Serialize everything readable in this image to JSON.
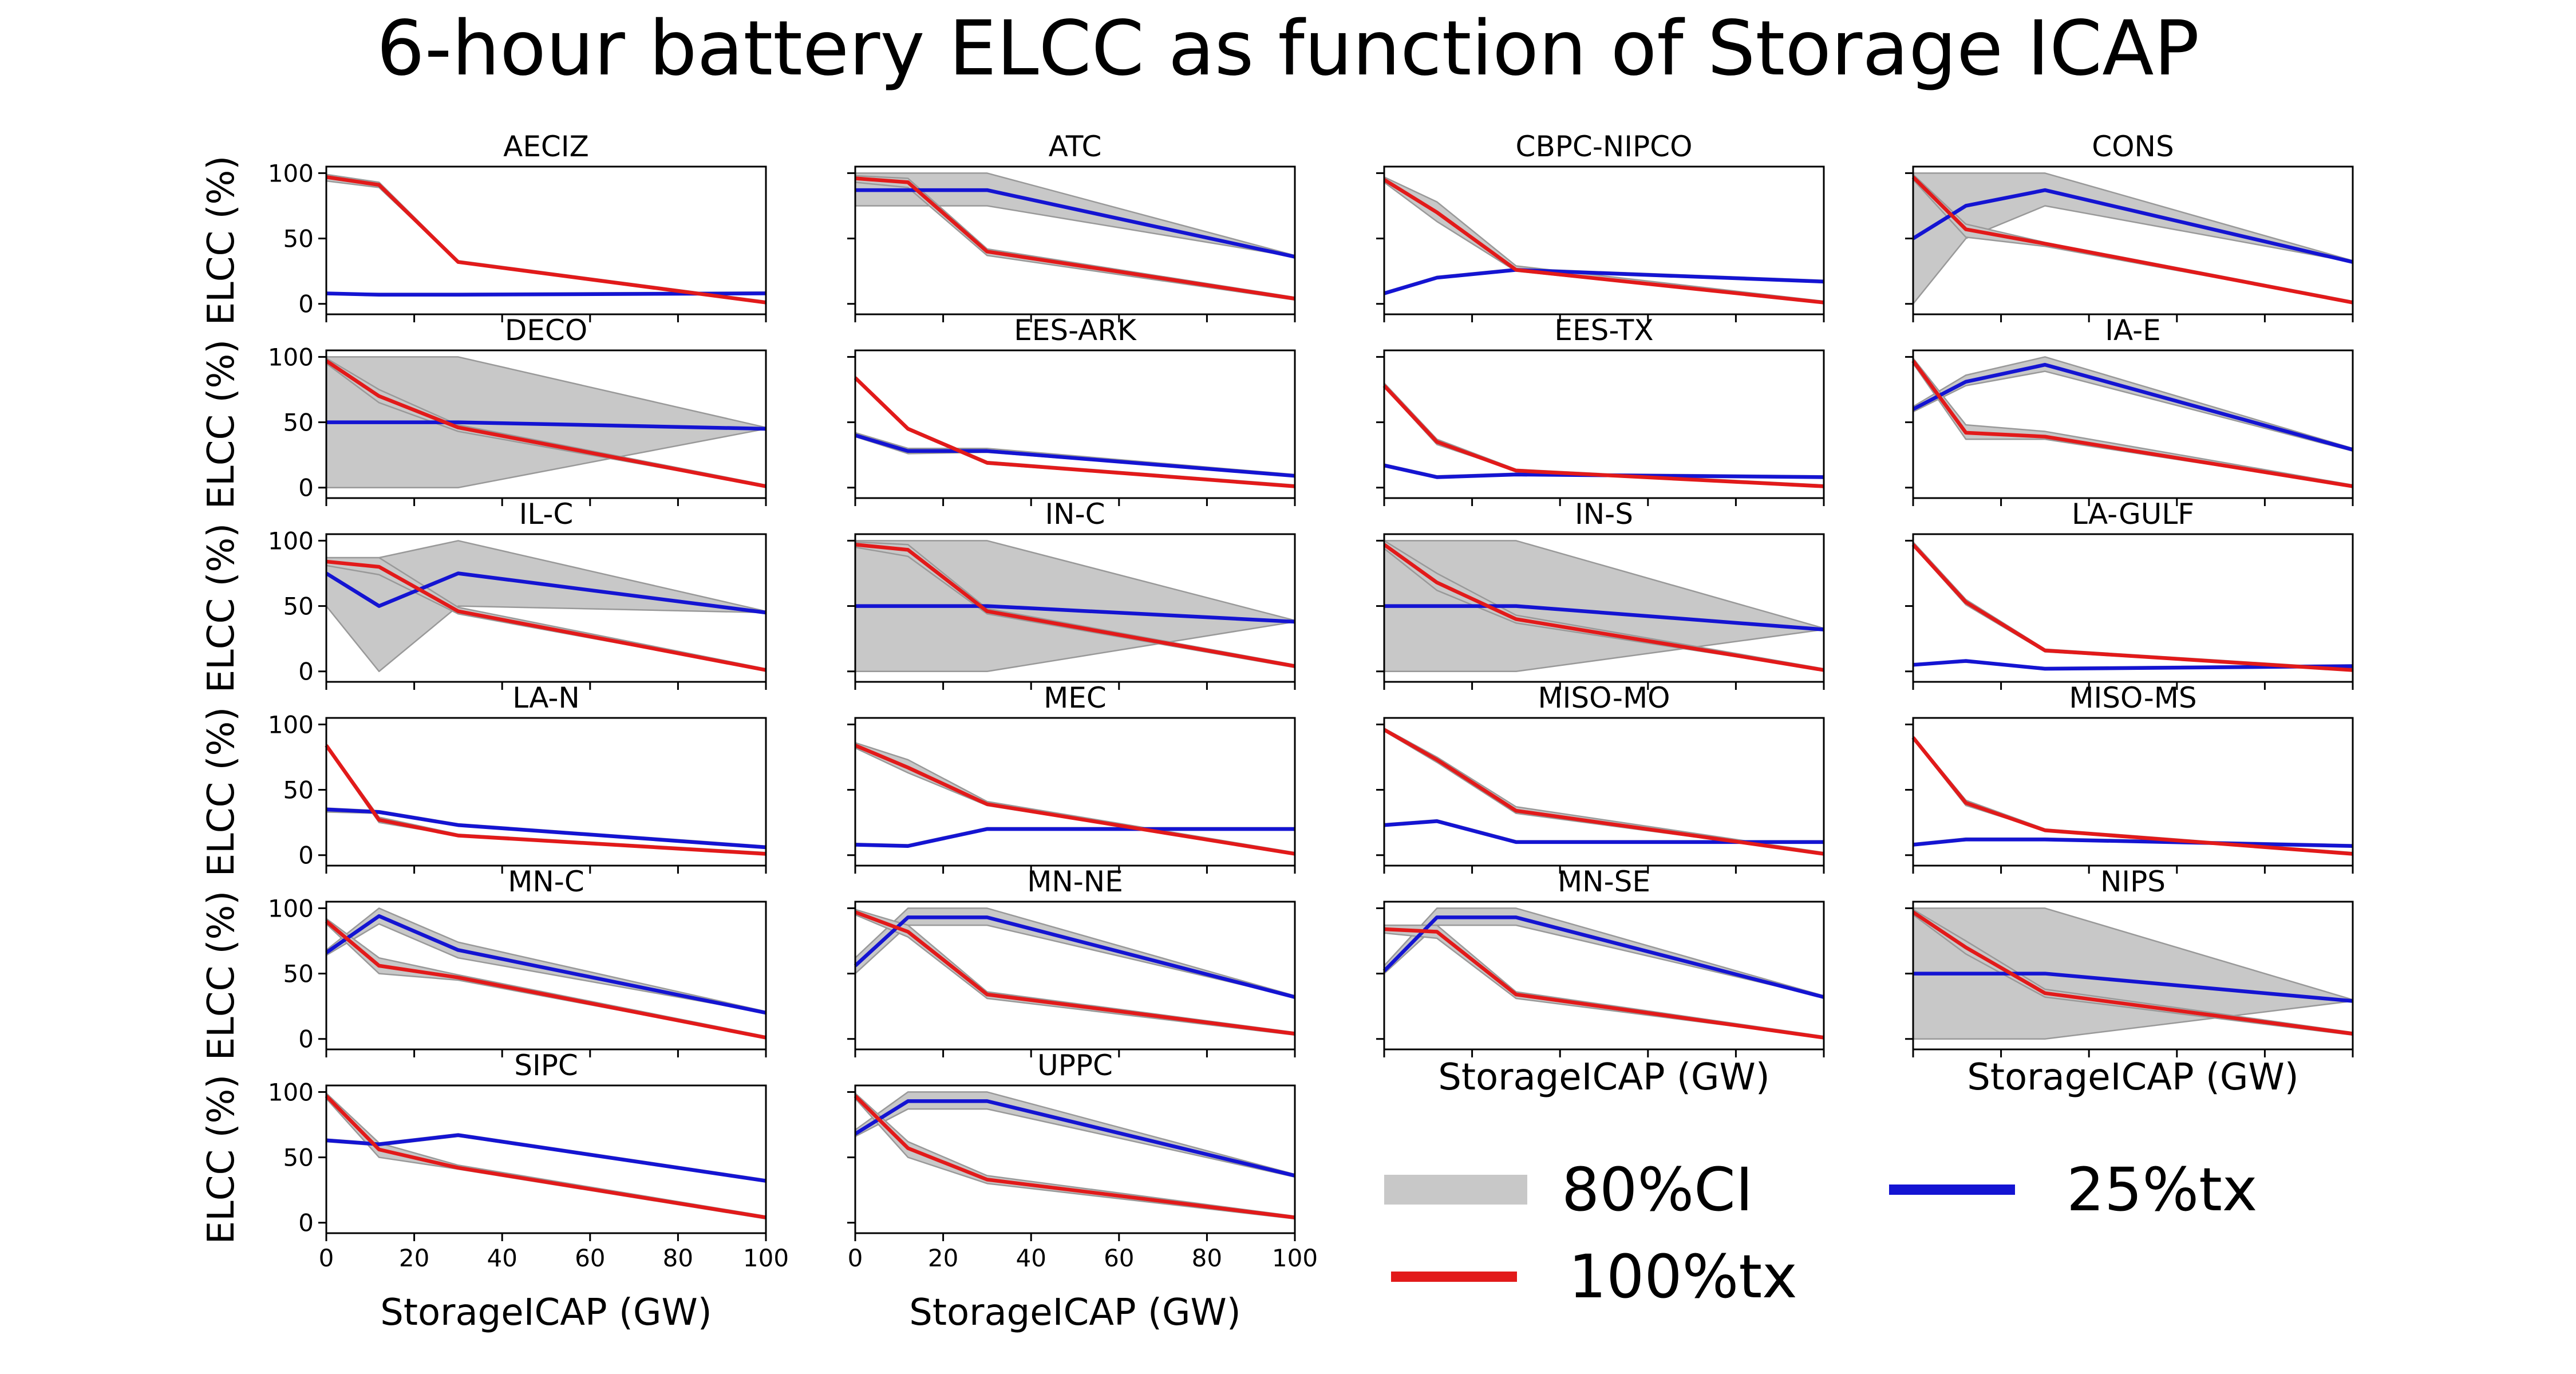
{
  "figure": {
    "title": "6-hour battery ELCC as function of Storage ICAP",
    "ylabel": "ELCC (%)",
    "xlabel": "StorageICAP (GW)"
  },
  "colors": {
    "ci_fill": "#c8c8c8",
    "ci_edge": "#999999",
    "tx100": "#e21a1a",
    "tx25": "#1414d2"
  },
  "legend": {
    "entries": [
      {
        "key": "ci",
        "label": "80%CI"
      },
      {
        "key": "tx100",
        "label": "100%tx"
      },
      {
        "key": "tx25",
        "label": "25%tx"
      }
    ]
  },
  "chart_data": {
    "type": "line",
    "x": [
      0,
      12,
      30,
      100
    ],
    "xlim": [
      0,
      100
    ],
    "ylim": [
      0,
      100
    ],
    "xticks": [
      0,
      20,
      40,
      60,
      80,
      100
    ],
    "yticks": [
      0,
      50,
      100
    ],
    "series_names": [
      "100%tx",
      "25%tx"
    ],
    "ci_label": "80%CI",
    "panels": [
      {
        "title": "AECIZ",
        "tx100": [
          97,
          91,
          32,
          1
        ],
        "tx100_ci": [
          [
            94,
            89,
            32,
            1
          ],
          [
            99,
            93,
            33,
            2
          ]
        ],
        "tx25": [
          8,
          7,
          7,
          8
        ],
        "tx25_ci": [
          [
            7,
            7,
            7,
            8
          ],
          [
            8,
            8,
            8,
            9
          ]
        ]
      },
      {
        "title": "ATC",
        "tx100": [
          96,
          93,
          40,
          4
        ],
        "tx100_ci": [
          [
            93,
            89,
            37,
            3
          ],
          [
            98,
            96,
            42,
            5
          ]
        ],
        "tx25": [
          87,
          87,
          87,
          36
        ],
        "tx25_ci": [
          [
            75,
            75,
            75,
            36
          ],
          [
            100,
            100,
            100,
            37
          ]
        ]
      },
      {
        "title": "CBPC-NIPCO",
        "tx100": [
          95,
          70,
          26,
          1
        ],
        "tx100_ci": [
          [
            93,
            63,
            25,
            1
          ],
          [
            97,
            78,
            29,
            2
          ]
        ],
        "tx25": [
          8,
          20,
          26,
          17
        ],
        "tx25_ci": [
          [
            8,
            20,
            26,
            17
          ],
          [
            9,
            21,
            27,
            18
          ]
        ]
      },
      {
        "title": "CONS",
        "tx100": [
          97,
          57,
          46,
          1
        ],
        "tx100_ci": [
          [
            95,
            51,
            44,
            1
          ],
          [
            99,
            61,
            47,
            2
          ]
        ],
        "tx25": [
          50,
          75,
          87,
          32
        ],
        "tx25_ci": [
          [
            0,
            50,
            75,
            32
          ],
          [
            100,
            100,
            100,
            33
          ]
        ]
      },
      {
        "title": "DECO",
        "tx100": [
          97,
          70,
          46,
          1
        ],
        "tx100_ci": [
          [
            95,
            65,
            43,
            1
          ],
          [
            99,
            75,
            48,
            2
          ]
        ],
        "tx25": [
          50,
          50,
          50,
          45
        ],
        "tx25_ci": [
          [
            0,
            0,
            0,
            45
          ],
          [
            100,
            100,
            100,
            46
          ]
        ]
      },
      {
        "title": "EES-ARK",
        "tx100": [
          84,
          45,
          19,
          1
        ],
        "tx100_ci": [
          [
            83,
            44,
            18,
            1
          ],
          [
            85,
            46,
            20,
            2
          ]
        ],
        "tx25": [
          40,
          28,
          28,
          9
        ],
        "tx25_ci": [
          [
            39,
            26,
            27,
            9
          ],
          [
            42,
            30,
            30,
            10
          ]
        ]
      },
      {
        "title": "EES-TX",
        "tx100": [
          78,
          35,
          13,
          1
        ],
        "tx100_ci": [
          [
            77,
            33,
            13,
            1
          ],
          [
            80,
            37,
            14,
            2
          ]
        ],
        "tx25": [
          17,
          8,
          10,
          8
        ],
        "tx25_ci": [
          [
            16,
            8,
            10,
            8
          ],
          [
            18,
            9,
            11,
            9
          ]
        ]
      },
      {
        "title": "IA-E",
        "tx100": [
          97,
          42,
          39,
          1
        ],
        "tx100_ci": [
          [
            95,
            37,
            37,
            1
          ],
          [
            99,
            48,
            43,
            2
          ]
        ],
        "tx25": [
          60,
          81,
          94,
          29
        ],
        "tx25_ci": [
          [
            58,
            78,
            89,
            28
          ],
          [
            62,
            86,
            100,
            30
          ]
        ]
      },
      {
        "title": "IL-C",
        "tx100": [
          84,
          80,
          46,
          1
        ],
        "tx100_ci": [
          [
            81,
            74,
            44,
            1
          ],
          [
            87,
            87,
            49,
            2
          ]
        ],
        "tx25": [
          75,
          50,
          75,
          45
        ],
        "tx25_ci": [
          [
            50,
            0,
            50,
            45
          ],
          [
            87,
            87,
            100,
            46
          ]
        ]
      },
      {
        "title": "IN-C",
        "tx100": [
          97,
          93,
          46,
          4
        ],
        "tx100_ci": [
          [
            95,
            88,
            44,
            3
          ],
          [
            99,
            97,
            48,
            5
          ]
        ],
        "tx25": [
          50,
          50,
          50,
          38
        ],
        "tx25_ci": [
          [
            0,
            0,
            0,
            38
          ],
          [
            100,
            100,
            100,
            39
          ]
        ]
      },
      {
        "title": "IN-S",
        "tx100": [
          97,
          68,
          40,
          1
        ],
        "tx100_ci": [
          [
            94,
            62,
            37,
            1
          ],
          [
            100,
            75,
            43,
            2
          ]
        ],
        "tx25": [
          50,
          50,
          50,
          32
        ],
        "tx25_ci": [
          [
            0,
            0,
            0,
            32
          ],
          [
            100,
            100,
            100,
            33
          ]
        ]
      },
      {
        "title": "LA-GULF",
        "tx100": [
          97,
          53,
          16,
          1
        ],
        "tx100_ci": [
          [
            96,
            51,
            15,
            1
          ],
          [
            99,
            55,
            17,
            2
          ]
        ],
        "tx25": [
          5,
          8,
          2,
          4
        ],
        "tx25_ci": [
          [
            5,
            7,
            2,
            4
          ],
          [
            6,
            8,
            3,
            5
          ]
        ]
      },
      {
        "title": "LA-N",
        "tx100": [
          84,
          27,
          15,
          1
        ],
        "tx100_ci": [
          [
            83,
            25,
            15,
            1
          ],
          [
            85,
            29,
            16,
            2
          ]
        ],
        "tx25": [
          35,
          33,
          23,
          6
        ],
        "tx25_ci": [
          [
            33,
            32,
            23,
            6
          ],
          [
            36,
            34,
            24,
            7
          ]
        ]
      },
      {
        "title": "MEC",
        "tx100": [
          84,
          67,
          39,
          1
        ],
        "tx100_ci": [
          [
            82,
            63,
            38,
            1
          ],
          [
            86,
            73,
            41,
            2
          ]
        ],
        "tx25": [
          8,
          7,
          20,
          20
        ],
        "tx25_ci": [
          [
            8,
            7,
            20,
            20
          ],
          [
            9,
            8,
            21,
            21
          ]
        ]
      },
      {
        "title": "MISO-MO",
        "tx100": [
          96,
          73,
          34,
          1
        ],
        "tx100_ci": [
          [
            95,
            71,
            32,
            1
          ],
          [
            97,
            75,
            37,
            2
          ]
        ],
        "tx25": [
          23,
          26,
          10,
          10
        ],
        "tx25_ci": [
          [
            23,
            26,
            10,
            10
          ],
          [
            24,
            27,
            11,
            11
          ]
        ]
      },
      {
        "title": "MISO-MS",
        "tx100": [
          90,
          40,
          19,
          1
        ],
        "tx100_ci": [
          [
            89,
            38,
            19,
            1
          ],
          [
            91,
            42,
            20,
            2
          ]
        ],
        "tx25": [
          8,
          12,
          12,
          7
        ],
        "tx25_ci": [
          [
            8,
            12,
            12,
            7
          ],
          [
            9,
            13,
            13,
            8
          ]
        ]
      },
      {
        "title": "MN-C",
        "tx100": [
          90,
          56,
          47,
          1
        ],
        "tx100_ci": [
          [
            88,
            50,
            45,
            1
          ],
          [
            92,
            62,
            49,
            2
          ]
        ],
        "tx25": [
          66,
          94,
          68,
          20
        ],
        "tx25_ci": [
          [
            64,
            88,
            62,
            20
          ],
          [
            68,
            100,
            74,
            21
          ]
        ]
      },
      {
        "title": "MN-NE",
        "tx100": [
          97,
          82,
          34,
          4
        ],
        "tx100_ci": [
          [
            95,
            78,
            31,
            3
          ],
          [
            99,
            87,
            36,
            5
          ]
        ],
        "tx25": [
          56,
          93,
          93,
          32
        ],
        "tx25_ci": [
          [
            50,
            87,
            87,
            32
          ],
          [
            62,
            100,
            100,
            33
          ]
        ]
      },
      {
        "title": "MN-SE",
        "tx100": [
          84,
          82,
          34,
          1
        ],
        "tx100_ci": [
          [
            81,
            77,
            31,
            1
          ],
          [
            87,
            87,
            36,
            2
          ]
        ],
        "tx25": [
          52,
          93,
          93,
          32
        ],
        "tx25_ci": [
          [
            50,
            87,
            87,
            32
          ],
          [
            56,
            100,
            100,
            33
          ]
        ]
      },
      {
        "title": "NIPS",
        "tx100": [
          97,
          70,
          35,
          4
        ],
        "tx100_ci": [
          [
            95,
            65,
            32,
            3
          ],
          [
            99,
            75,
            38,
            5
          ]
        ],
        "tx25": [
          50,
          50,
          50,
          29
        ],
        "tx25_ci": [
          [
            0,
            0,
            0,
            29
          ],
          [
            100,
            100,
            100,
            30
          ]
        ]
      },
      {
        "title": "SIPC",
        "tx100": [
          97,
          56,
          42,
          4
        ],
        "tx100_ci": [
          [
            95,
            50,
            41,
            3
          ],
          [
            99,
            61,
            44,
            5
          ]
        ],
        "tx25": [
          63,
          60,
          67,
          32
        ],
        "tx25_ci": [
          [
            62,
            59,
            66,
            32
          ],
          [
            64,
            61,
            68,
            33
          ]
        ]
      },
      {
        "title": "UPPC",
        "tx100": [
          97,
          57,
          33,
          4
        ],
        "tx100_ci": [
          [
            95,
            50,
            30,
            3
          ],
          [
            99,
            62,
            36,
            5
          ]
        ],
        "tx25": [
          68,
          93,
          93,
          36
        ],
        "tx25_ci": [
          [
            66,
            87,
            87,
            35
          ],
          [
            71,
            100,
            100,
            37
          ]
        ]
      }
    ]
  }
}
